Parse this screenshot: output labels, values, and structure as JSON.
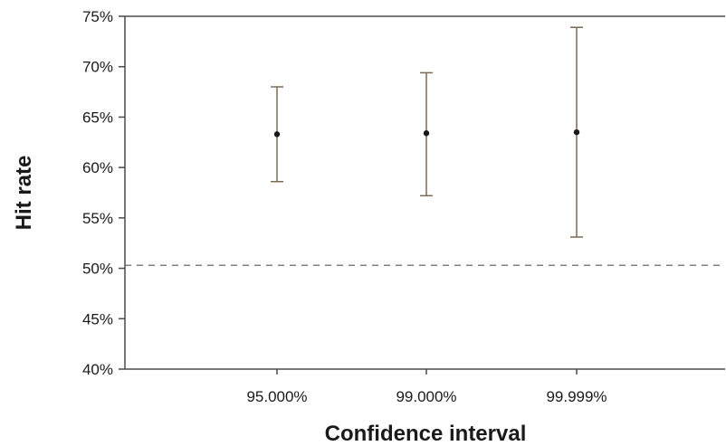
{
  "chart_data": {
    "type": "scatter",
    "title": "",
    "xlabel": "Confidence interval",
    "ylabel": "Hit rate",
    "categories": [
      "95.000%",
      "99.000%",
      "99.999%"
    ],
    "series": [
      {
        "values": [
          63.3,
          63.4,
          63.5
        ],
        "error_low": [
          58.6,
          57.2,
          53.1
        ],
        "error_high": [
          68.0,
          69.4,
          73.9
        ]
      }
    ],
    "reference_line": {
      "value": 50.3,
      "style": "dashed"
    },
    "ylim": [
      40,
      75
    ],
    "yticks": [
      40,
      45,
      50,
      55,
      60,
      65,
      70,
      75
    ],
    "ytick_labels": [
      "40%",
      "45%",
      "50%",
      "55%",
      "60%",
      "65%",
      "70%",
      "75%"
    ],
    "grid": false,
    "legend": "none",
    "colors": {
      "axis": "#4a4a4a",
      "error_bar": "#7a6a55",
      "marker": "#1a1a1a",
      "reference_line": "#6a6a6a"
    }
  }
}
